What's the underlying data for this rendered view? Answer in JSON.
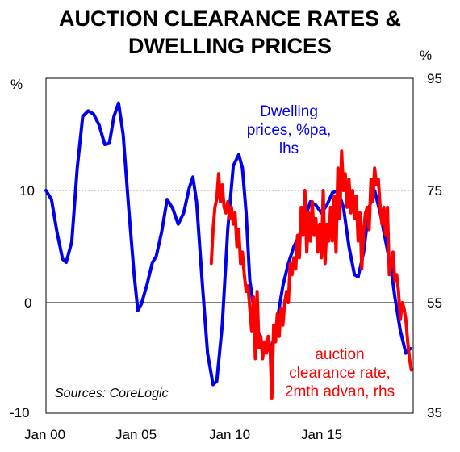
{
  "chart_data": {
    "type": "line",
    "title": [
      "AUCTION CLEARANCE RATES &",
      "DWELLING PRICES"
    ],
    "left_unit": "%",
    "right_unit": "%",
    "left_axis": {
      "min": -10,
      "max": 19,
      "ticks": [
        -10,
        0,
        10
      ]
    },
    "right_axis": {
      "min": 35,
      "max": 95,
      "ticks": [
        35,
        55,
        75,
        95
      ]
    },
    "x_axis": {
      "min": 2000,
      "max": 2020,
      "tick_labels": [
        "Jan 00",
        "Jan 05",
        "Jan 10",
        "Jan 15"
      ],
      "tick_values": [
        2000,
        2005,
        2010,
        2015
      ]
    },
    "reference_lines": {
      "left_value": 10,
      "style": "dotted",
      "zero_line": 0
    },
    "annotations": {
      "blue": [
        "Dwelling",
        "prices, %pa,",
        "lhs"
      ],
      "red": [
        "auction",
        "clearance rate,",
        "2mth advan, rhs"
      ],
      "source": "Sources: CoreLogic"
    },
    "series": [
      {
        "name": "Dwelling prices, %pa, lhs",
        "axis": "left",
        "color": "#0000ee",
        "points": [
          [
            2000.0,
            10.0
          ],
          [
            2000.3,
            9.2
          ],
          [
            2000.6,
            6.3
          ],
          [
            2000.9,
            3.9
          ],
          [
            2001.1,
            3.6
          ],
          [
            2001.4,
            5.4
          ],
          [
            2001.7,
            12.0
          ],
          [
            2002.0,
            16.6
          ],
          [
            2002.3,
            17.1
          ],
          [
            2002.6,
            16.8
          ],
          [
            2002.9,
            15.8
          ],
          [
            2003.2,
            14.1
          ],
          [
            2003.45,
            14.2
          ],
          [
            2003.7,
            16.6
          ],
          [
            2003.95,
            17.8
          ],
          [
            2004.2,
            15.0
          ],
          [
            2004.5,
            8.5
          ],
          [
            2004.8,
            2.5
          ],
          [
            2005.0,
            -0.7
          ],
          [
            2005.2,
            -0.1
          ],
          [
            2005.5,
            1.6
          ],
          [
            2005.8,
            3.6
          ],
          [
            2006.0,
            4.1
          ],
          [
            2006.3,
            6.3
          ],
          [
            2006.6,
            9.2
          ],
          [
            2006.9,
            8.4
          ],
          [
            2007.2,
            7.0
          ],
          [
            2007.5,
            8.0
          ],
          [
            2007.8,
            10.2
          ],
          [
            2008.0,
            11.2
          ],
          [
            2008.2,
            9.0
          ],
          [
            2008.5,
            2.0
          ],
          [
            2008.8,
            -4.5
          ],
          [
            2009.1,
            -7.3
          ],
          [
            2009.3,
            -7.0
          ],
          [
            2009.6,
            -2.0
          ],
          [
            2009.9,
            6.5
          ],
          [
            2010.2,
            12.2
          ],
          [
            2010.5,
            13.2
          ],
          [
            2010.7,
            12.0
          ],
          [
            2010.9,
            8.0
          ],
          [
            2011.1,
            2.0
          ],
          [
            2011.4,
            -1.5
          ],
          [
            2011.7,
            -3.5
          ],
          [
            2012.0,
            -4.3
          ],
          [
            2012.3,
            -4.0
          ],
          [
            2012.6,
            -1.5
          ],
          [
            2012.9,
            1.5
          ],
          [
            2013.2,
            3.5
          ],
          [
            2013.5,
            5.0
          ],
          [
            2013.8,
            6.0
          ],
          [
            2014.1,
            7.5
          ],
          [
            2014.4,
            9.0
          ],
          [
            2014.7,
            8.7
          ],
          [
            2015.0,
            8.0
          ],
          [
            2015.3,
            8.7
          ],
          [
            2015.6,
            9.8
          ],
          [
            2015.9,
            10.0
          ],
          [
            2016.2,
            8.5
          ],
          [
            2016.5,
            5.0
          ],
          [
            2016.8,
            2.5
          ],
          [
            2017.0,
            2.3
          ],
          [
            2017.3,
            4.5
          ],
          [
            2017.6,
            8.5
          ],
          [
            2017.9,
            10.0
          ],
          [
            2018.2,
            8.0
          ],
          [
            2018.5,
            5.5
          ],
          [
            2018.8,
            3.0
          ],
          [
            2019.0,
            0.5
          ],
          [
            2019.3,
            -2.5
          ],
          [
            2019.6,
            -4.5
          ],
          [
            2019.85,
            -4.1
          ]
        ]
      },
      {
        "name": "auction clearance rate, 2mth advan, rhs",
        "axis": "right",
        "color": "#ff0000",
        "points": [
          [
            2009.0,
            62.0
          ],
          [
            2009.1,
            68.0
          ],
          [
            2009.2,
            72.0
          ],
          [
            2009.3,
            73.5
          ],
          [
            2009.4,
            78.0
          ],
          [
            2009.5,
            73.0
          ],
          [
            2009.6,
            76.0
          ],
          [
            2009.7,
            72.0
          ],
          [
            2009.8,
            71.0
          ],
          [
            2009.9,
            73.0
          ],
          [
            2010.0,
            70.0
          ],
          [
            2010.1,
            72.0
          ],
          [
            2010.2,
            69.0
          ],
          [
            2010.3,
            71.0
          ],
          [
            2010.4,
            65.0
          ],
          [
            2010.5,
            68.0
          ],
          [
            2010.6,
            62.0
          ],
          [
            2010.7,
            64.0
          ],
          [
            2010.8,
            60.0
          ],
          [
            2010.9,
            57.0
          ],
          [
            2011.0,
            58.0
          ],
          [
            2011.1,
            54.0
          ],
          [
            2011.2,
            50.0
          ],
          [
            2011.3,
            56.0
          ],
          [
            2011.4,
            45.0
          ],
          [
            2011.5,
            57.0
          ],
          [
            2011.6,
            47.0
          ],
          [
            2011.7,
            49.0
          ],
          [
            2011.8,
            45.0
          ],
          [
            2011.9,
            48.0
          ],
          [
            2012.0,
            46.0
          ],
          [
            2012.1,
            49.0
          ],
          [
            2012.2,
            47.0
          ],
          [
            2012.3,
            38.0
          ],
          [
            2012.4,
            51.0
          ],
          [
            2012.5,
            48.0
          ],
          [
            2012.6,
            53.0
          ],
          [
            2012.7,
            49.0
          ],
          [
            2012.8,
            54.0
          ],
          [
            2012.9,
            51.0
          ],
          [
            2013.0,
            55.0
          ],
          [
            2013.1,
            57.0
          ],
          [
            2013.2,
            55.0
          ],
          [
            2013.3,
            62.0
          ],
          [
            2013.4,
            60.0
          ],
          [
            2013.5,
            63.0
          ],
          [
            2013.6,
            61.0
          ],
          [
            2013.7,
            67.0
          ],
          [
            2013.8,
            63.0
          ],
          [
            2013.9,
            72.0
          ],
          [
            2014.0,
            67.0
          ],
          [
            2014.1,
            75.0
          ],
          [
            2014.2,
            64.0
          ],
          [
            2014.3,
            71.0
          ],
          [
            2014.4,
            66.0
          ],
          [
            2014.5,
            73.0
          ],
          [
            2014.6,
            67.0
          ],
          [
            2014.7,
            70.0
          ],
          [
            2014.8,
            64.0
          ],
          [
            2014.9,
            69.0
          ],
          [
            2015.0,
            63.0
          ],
          [
            2015.1,
            75.0
          ],
          [
            2015.2,
            62.0
          ],
          [
            2015.3,
            69.0
          ],
          [
            2015.4,
            66.0
          ],
          [
            2015.5,
            72.0
          ],
          [
            2015.6,
            66.0
          ],
          [
            2015.7,
            74.0
          ],
          [
            2015.8,
            64.0
          ],
          [
            2015.9,
            79.0
          ],
          [
            2016.0,
            70.0
          ],
          [
            2016.1,
            82.0
          ],
          [
            2016.2,
            75.0
          ],
          [
            2016.3,
            78.0
          ],
          [
            2016.4,
            72.0
          ],
          [
            2016.5,
            77.0
          ],
          [
            2016.6,
            71.0
          ],
          [
            2016.7,
            75.0
          ],
          [
            2016.8,
            70.0
          ],
          [
            2016.9,
            74.0
          ],
          [
            2017.0,
            66.0
          ],
          [
            2017.1,
            71.0
          ],
          [
            2017.2,
            61.0
          ],
          [
            2017.3,
            68.0
          ],
          [
            2017.4,
            71.0
          ],
          [
            2017.5,
            72.0
          ],
          [
            2017.6,
            68.0
          ],
          [
            2017.7,
            77.0
          ],
          [
            2017.8,
            73.0
          ],
          [
            2017.9,
            79.0
          ],
          [
            2018.0,
            76.0
          ],
          [
            2018.1,
            77.0
          ],
          [
            2018.2,
            72.0
          ],
          [
            2018.3,
            69.0
          ],
          [
            2018.4,
            72.0
          ],
          [
            2018.5,
            67.0
          ],
          [
            2018.6,
            72.0
          ],
          [
            2018.7,
            60.0
          ],
          [
            2018.8,
            62.0
          ],
          [
            2018.9,
            64.0
          ],
          [
            2019.0,
            59.0
          ],
          [
            2019.1,
            60.0
          ],
          [
            2019.2,
            57.0
          ],
          [
            2019.3,
            52.0
          ],
          [
            2019.4,
            55.0
          ],
          [
            2019.5,
            54.0
          ],
          [
            2019.6,
            52.0
          ],
          [
            2019.7,
            48.0
          ],
          [
            2019.8,
            45.0
          ],
          [
            2019.9,
            43.0
          ]
        ]
      }
    ]
  }
}
